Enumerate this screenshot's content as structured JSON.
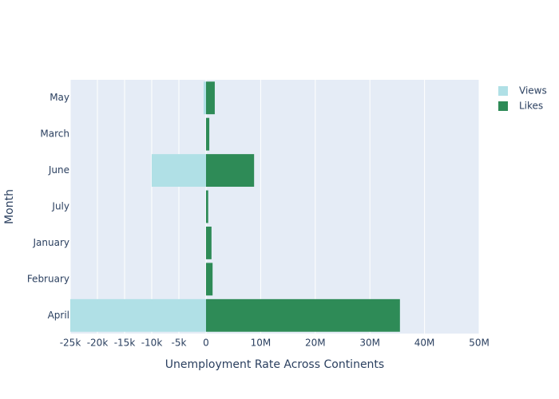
{
  "chart_data": {
    "type": "bar",
    "orientation": "horizontal",
    "x_label": "Unemployment Rate Across Continents",
    "y_label": "Month",
    "categories": [
      "April",
      "February",
      "January",
      "July",
      "June",
      "March",
      "May"
    ],
    "series": [
      {
        "name": "Views",
        "color": "#b0e0e6",
        "values": [
          -25000,
          0,
          0,
          0,
          -10000,
          0,
          -450
        ]
      },
      {
        "name": "Likes",
        "color": "#2e8b57",
        "axis": "x2",
        "values": [
          35500000,
          1200000,
          1000000,
          400000,
          8800000,
          600000,
          1600000
        ]
      }
    ],
    "xlim": [
      -25000,
      0
    ],
    "xticks": [
      {
        "value": -25000,
        "label": "-25k"
      },
      {
        "value": -20000,
        "label": "-20k"
      },
      {
        "value": -15000,
        "label": "-15k"
      },
      {
        "value": -10000,
        "label": "-10k"
      },
      {
        "value": -5000,
        "label": "-5k"
      }
    ],
    "x2lim": [
      0,
      50000000
    ],
    "x2ticks": [
      0,
      {
        "value": 10000000,
        "label": "10M"
      },
      {
        "value": 20000000,
        "label": "20M"
      },
      {
        "value": 30000000,
        "label": "30M"
      },
      {
        "value": 40000000,
        "label": "40M"
      },
      {
        "value": 50000000,
        "label": "50M"
      }
    ],
    "grid": true,
    "legend": "top-right"
  }
}
